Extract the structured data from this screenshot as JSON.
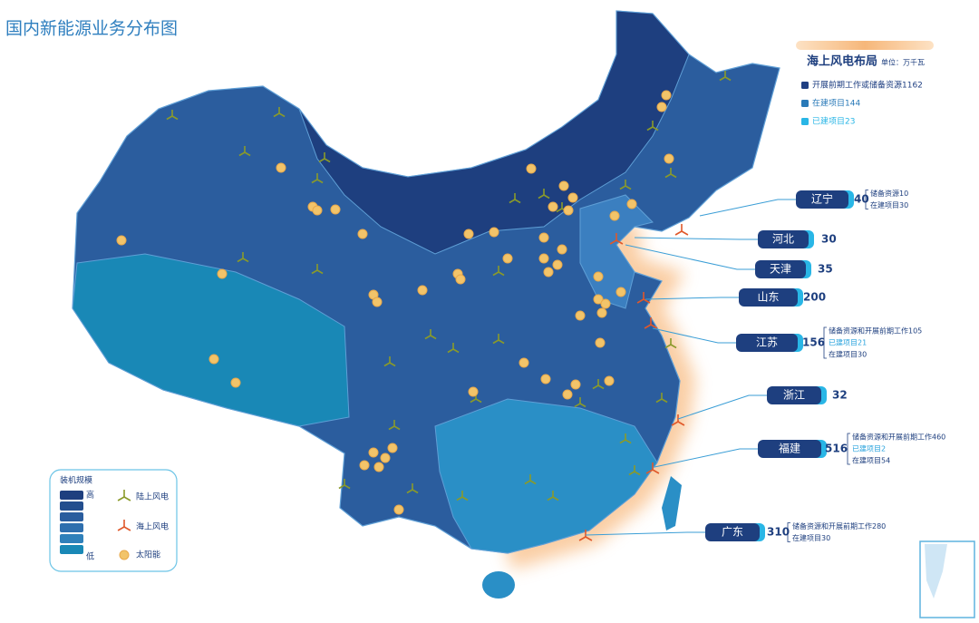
{
  "title": "国内新能源业务分布图",
  "offshore_panel": {
    "title": "海上风电布局",
    "unit": "单位：万千瓦",
    "items": [
      {
        "label": "开展前期工作或储备资源1162",
        "color": "#1f3f82"
      },
      {
        "label": "在建项目144",
        "color": "#2a7ab8"
      },
      {
        "label": "已建项目23",
        "color": "#29b6e6"
      }
    ]
  },
  "callouts": [
    {
      "province": "辽宁",
      "total": 40,
      "details": [
        "储备资源10",
        "在建项目30"
      ]
    },
    {
      "province": "河北",
      "total": 30,
      "details": []
    },
    {
      "province": "天津",
      "total": 35,
      "details": []
    },
    {
      "province": "山东",
      "total": 200,
      "details": []
    },
    {
      "province": "江苏",
      "total": 156,
      "details": [
        "储备资源和开展前期工作105",
        "已建项目21",
        "在建项目30"
      ]
    },
    {
      "province": "浙江",
      "total": 32,
      "details": []
    },
    {
      "province": "福建",
      "total": 516,
      "details": [
        "储备资源和开展前期工作460",
        "已建项目2",
        "在建项目54"
      ]
    },
    {
      "province": "广东",
      "total": 310,
      "details": [
        "储备资源和开展前期工作280",
        "在建项目30"
      ]
    }
  ],
  "legend": {
    "title": "装机规模",
    "high": "高",
    "low": "低",
    "items": [
      {
        "label": "陆上风电",
        "color": "#8a9a2a"
      },
      {
        "label": "海上风电",
        "color": "#e0582a"
      },
      {
        "label": "太阳能",
        "color": "#f2c46a"
      }
    ]
  }
}
